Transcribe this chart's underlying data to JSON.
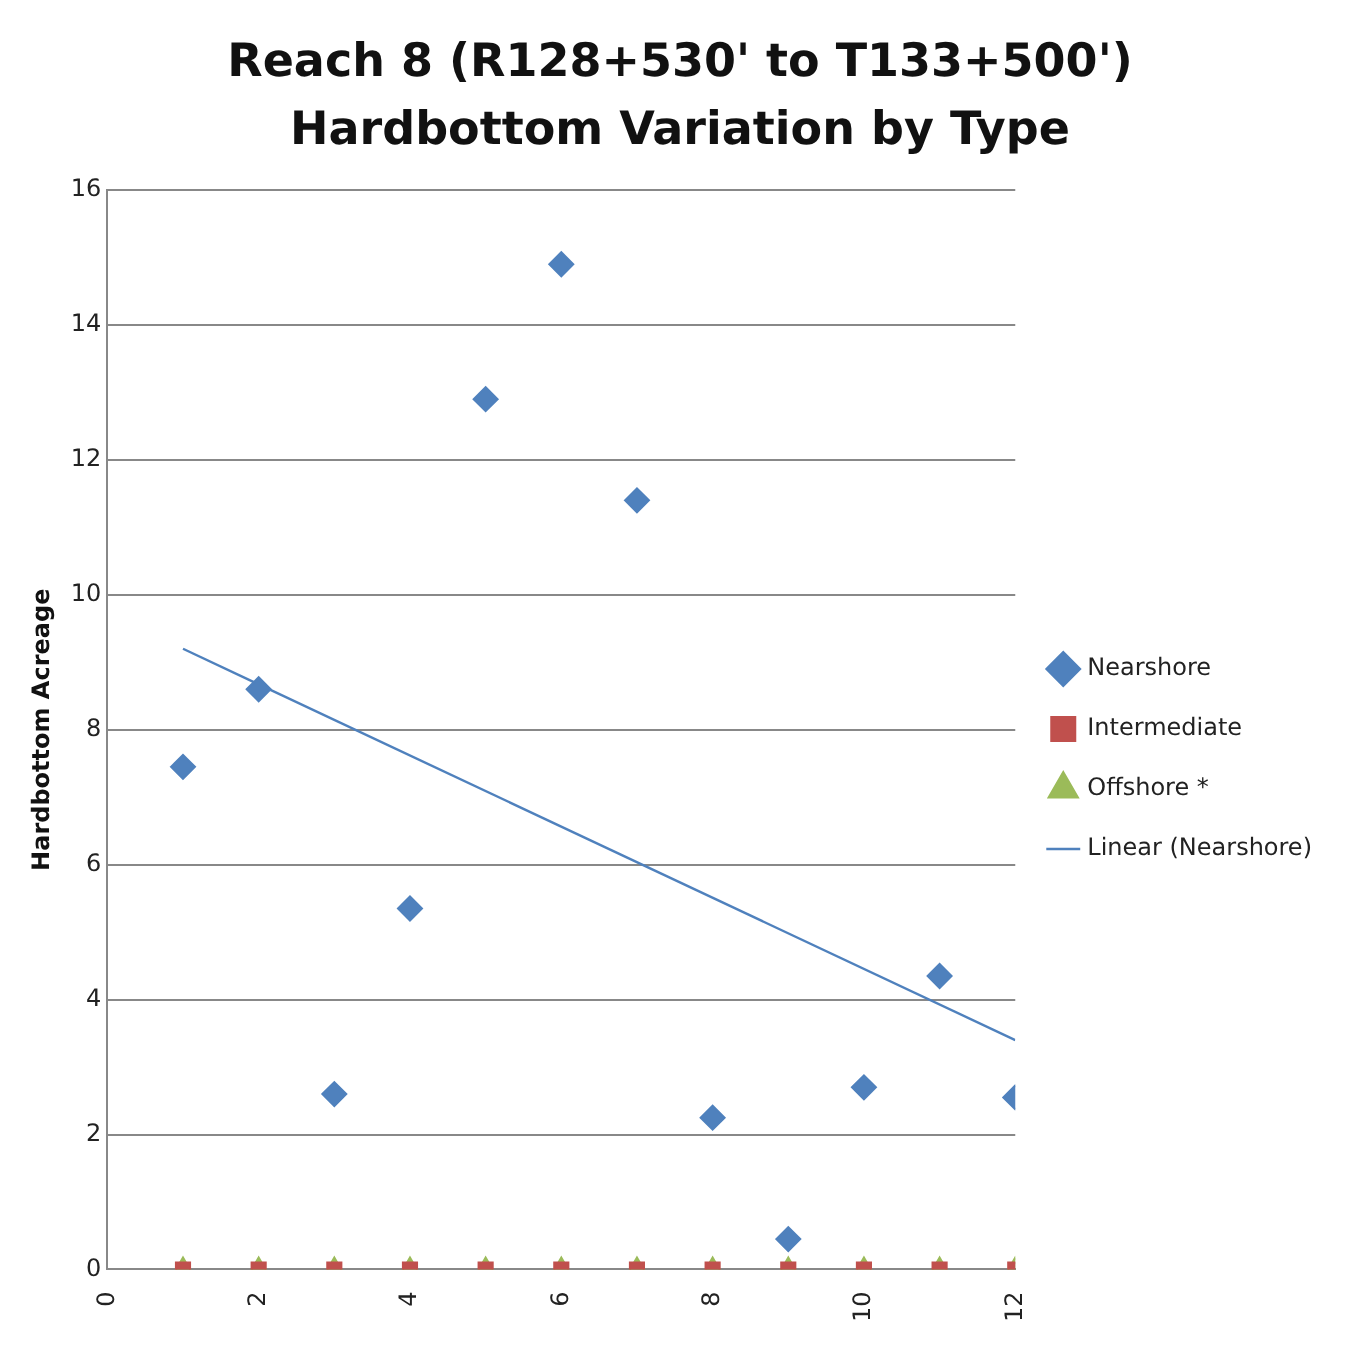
{
  "chart_data": {
    "type": "scatter",
    "title": "Reach 8 (R128+530' to T133+500') Hardbottom Variation by Type",
    "ylabel": "Hardbottom Acreage",
    "xlim": [
      0,
      12
    ],
    "xticks": [
      0,
      2,
      4,
      6,
      8,
      10,
      12
    ],
    "ylim": [
      0,
      16
    ],
    "yticks": [
      0,
      2,
      4,
      6,
      8,
      10,
      12,
      14,
      16
    ],
    "grid": "y",
    "legend": "right",
    "x": [
      1,
      2,
      3,
      4,
      5,
      6,
      7,
      8,
      9,
      10,
      11,
      12
    ],
    "series": [
      {
        "name": "Nearshore",
        "color": "#4f81bd",
        "marker": "diamond",
        "values": [
          7.45,
          8.6,
          2.6,
          5.35,
          12.9,
          14.9,
          11.4,
          2.25,
          0.45,
          2.7,
          4.35,
          2.55
        ]
      },
      {
        "name": "Intermediate",
        "color": "#c0504d",
        "marker": "square",
        "values": [
          0,
          0,
          0,
          0,
          0,
          0,
          0,
          0,
          0,
          0,
          0,
          0
        ]
      },
      {
        "name": "Offshore *",
        "color": "#9bbb59",
        "marker": "triangle",
        "values": [
          0,
          0,
          0,
          0,
          0,
          0,
          0,
          0,
          0,
          0,
          0,
          0
        ]
      },
      {
        "name": "Linear (Nearshore)",
        "type": "line",
        "color": "#4f81bd",
        "marker": "none",
        "line_style": "solid",
        "x": [
          1,
          12
        ],
        "values": [
          9.2,
          3.4
        ]
      }
    ]
  }
}
